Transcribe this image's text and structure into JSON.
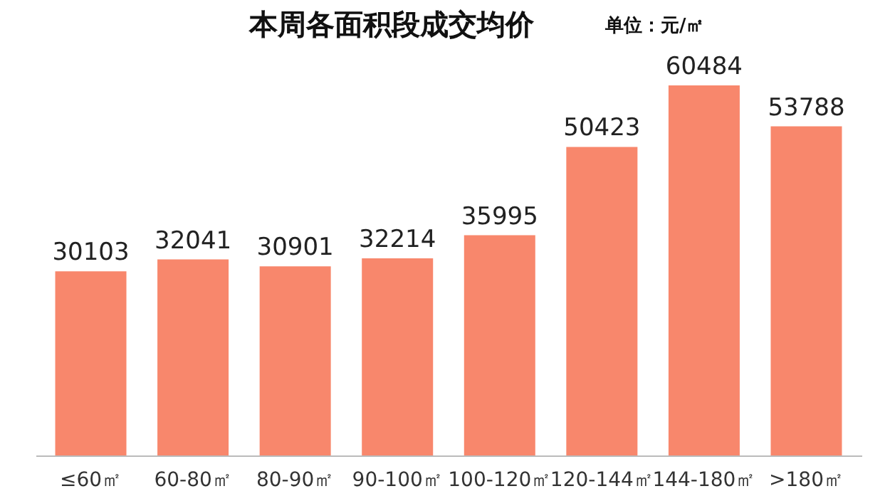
{
  "chart_data": {
    "type": "bar",
    "title": "本周各面积段成交均价",
    "annotations": [
      "单位：元/㎡"
    ],
    "categories": [
      "≤60㎡",
      "60-80㎡",
      "80-90㎡",
      "90-100㎡",
      "100-120㎡",
      "120-144㎡",
      "144-180㎡",
      ">180㎡"
    ],
    "values": [
      30103,
      32041,
      30901,
      32214,
      35995,
      50423,
      60484,
      53788
    ],
    "color": "#f8876c",
    "data_labels": true,
    "grid": false
  }
}
